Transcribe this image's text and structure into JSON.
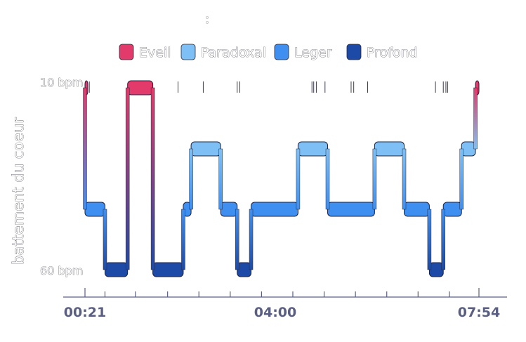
{
  "chart_data": {
    "type": "area",
    "title": "",
    "subtitle": ":",
    "ylabel": "battement du coeur",
    "xlabel": "",
    "y_ticks": [
      "10 bpm",
      "60 bpm"
    ],
    "x_ticks": [
      "00:21",
      "04:00",
      "07:54"
    ],
    "legend": [
      {
        "name": "Eveil",
        "color": "#e23a6a"
      },
      {
        "name": "Paradoxal",
        "color": "#7ec0f5"
      },
      {
        "name": "Leger",
        "color": "#3f8ff0"
      },
      {
        "name": "Profond",
        "color": "#1d4aa6"
      }
    ],
    "stage_order": [
      "Eveil",
      "Paradoxal",
      "Leger",
      "Profond"
    ],
    "segments": [
      {
        "start": "00:21",
        "end": "00:21",
        "stage": "Eveil"
      },
      {
        "start": "00:21",
        "end": "00:44",
        "stage": "Leger"
      },
      {
        "start": "00:44",
        "end": "01:10",
        "stage": "Profond"
      },
      {
        "start": "01:10",
        "end": "01:39",
        "stage": "Eveil"
      },
      {
        "start": "01:39",
        "end": "02:14",
        "stage": "Profond"
      },
      {
        "start": "02:14",
        "end": "02:23",
        "stage": "Leger"
      },
      {
        "start": "02:23",
        "end": "02:57",
        "stage": "Paradoxal"
      },
      {
        "start": "02:57",
        "end": "03:16",
        "stage": "Leger"
      },
      {
        "start": "03:16",
        "end": "03:32",
        "stage": "Profond"
      },
      {
        "start": "03:32",
        "end": "04:26",
        "stage": "Leger"
      },
      {
        "start": "04:26",
        "end": "05:00",
        "stage": "Paradoxal"
      },
      {
        "start": "05:00",
        "end": "05:54",
        "stage": "Leger"
      },
      {
        "start": "05:54",
        "end": "06:28",
        "stage": "Paradoxal"
      },
      {
        "start": "06:28",
        "end": "06:57",
        "stage": "Leger"
      },
      {
        "start": "06:57",
        "end": "07:13",
        "stage": "Profond"
      },
      {
        "start": "07:13",
        "end": "07:34",
        "stage": "Leger"
      },
      {
        "start": "07:34",
        "end": "07:50",
        "stage": "Paradoxal"
      },
      {
        "start": "07:50",
        "end": "07:54",
        "stage": "Eveil"
      }
    ],
    "event_marks": [
      "00:23",
      "00:26",
      "02:08",
      "02:37",
      "03:16",
      "03:19",
      "04:42",
      "04:44",
      "04:47",
      "04:57",
      "05:27",
      "05:30",
      "05:46",
      "07:04",
      "07:13",
      "07:16",
      "07:18"
    ],
    "axis_ticks": [
      "00:21",
      "00:44",
      "01:19",
      "01:56",
      "02:32",
      "03:08",
      "03:44",
      "04:20",
      "04:56",
      "05:32",
      "06:08",
      "06:44",
      "07:20",
      "07:54"
    ]
  }
}
